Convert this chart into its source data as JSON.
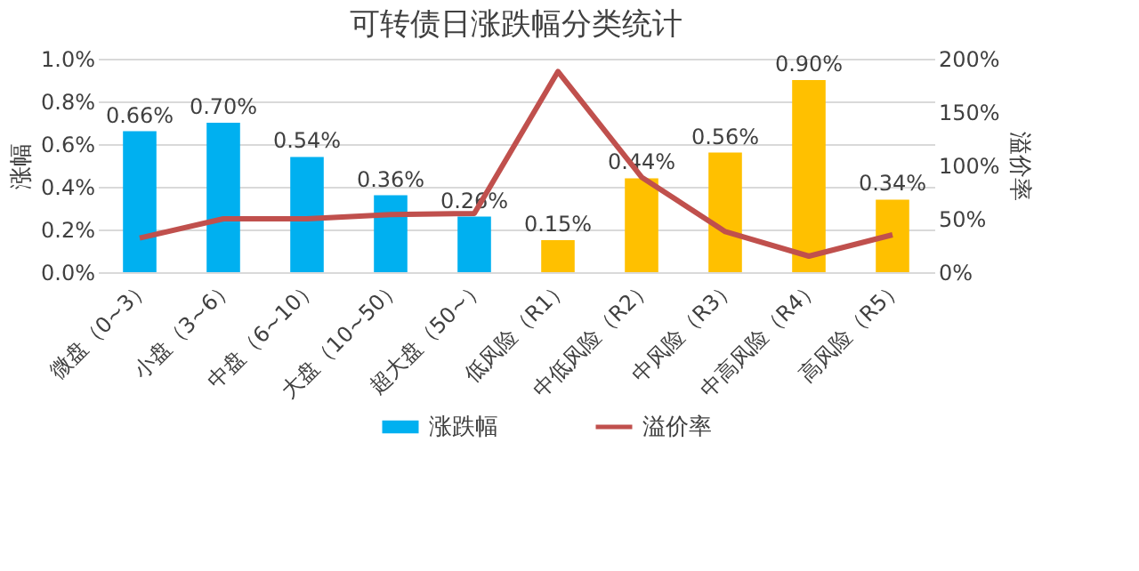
{
  "chart_data": {
    "type": "bar",
    "title": "可转债日涨跌幅分类统计",
    "ylabel": "涨幅",
    "y2label": "溢价率",
    "categories": [
      "微盘（0~3）",
      "小盘（3~6）",
      "中盘（6~10）",
      "大盘（10~50）",
      "超大盘（50~）",
      "低风险（R1）",
      "中低风险（R2）",
      "中风险（R3）",
      "中高风险（R4）",
      "高风险（R5）"
    ],
    "series": [
      {
        "name": "涨跌幅",
        "color": "#00b0f0",
        "colors": [
          "#00b0f0",
          "#00b0f0",
          "#00b0f0",
          "#00b0f0",
          "#00b0f0",
          "#ffc000",
          "#ffc000",
          "#ffc000",
          "#ffc000",
          "#ffc000"
        ],
        "values": [
          0.66,
          0.7,
          0.54,
          0.36,
          0.26,
          0.15,
          0.44,
          0.56,
          0.9,
          0.34
        ],
        "value_labels": [
          "0.66%",
          "0.70%",
          "0.54%",
          "0.36%",
          "0.26%",
          "0.15%",
          "0.44%",
          "0.56%",
          "0.90%",
          "0.34%"
        ]
      },
      {
        "name": "溢价率",
        "type": "line",
        "axis": "y2",
        "color": "#c0504d",
        "values": [
          32,
          50,
          50,
          54,
          55,
          188,
          89,
          38,
          15,
          35
        ]
      }
    ],
    "ylim": [
      0,
      1.0
    ],
    "yticks": [
      {
        "value": 0,
        "label": "0.0%"
      },
      {
        "value": 0.2,
        "label": "0.2%"
      },
      {
        "value": 0.4,
        "label": "0.4%"
      },
      {
        "value": 0.6,
        "label": "0.6%"
      },
      {
        "value": 0.8,
        "label": "0.8%"
      },
      {
        "value": 1.0,
        "label": "1.0%"
      }
    ],
    "y2lim": [
      0,
      200
    ],
    "y2ticks": [
      {
        "value": 0,
        "label": "0%"
      },
      {
        "value": 50,
        "label": "50%"
      },
      {
        "value": 100,
        "label": "100%"
      },
      {
        "value": 150,
        "label": "150%"
      },
      {
        "value": 200,
        "label": "200%"
      }
    ],
    "grid": "y",
    "legend": "bottom"
  }
}
